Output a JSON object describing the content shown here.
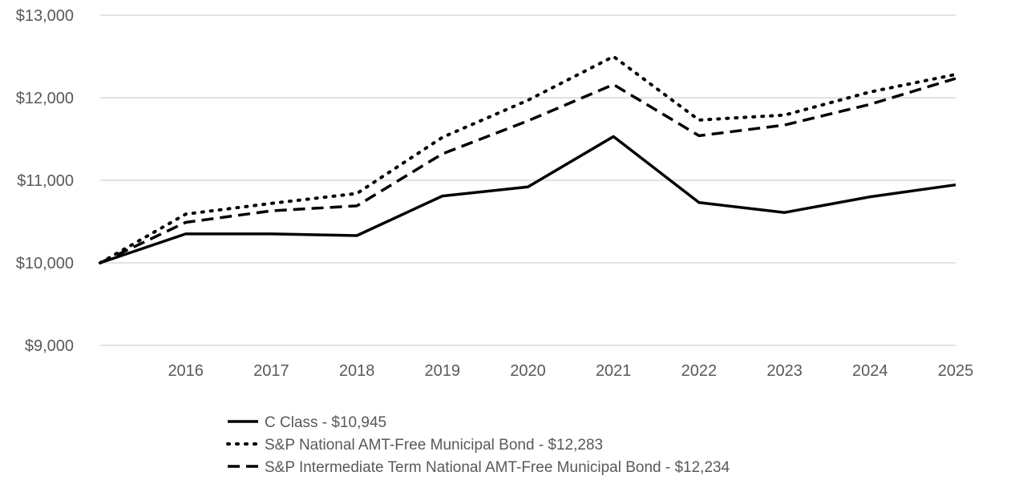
{
  "chart_data": {
    "type": "line",
    "title": "",
    "xlabel": "",
    "ylabel": "",
    "x": [
      "2015",
      "2016",
      "2017",
      "2018",
      "2019",
      "2020",
      "2021",
      "2022",
      "2023",
      "2024",
      "2025"
    ],
    "x_tick_labels": [
      "2016",
      "2017",
      "2018",
      "2019",
      "2020",
      "2021",
      "2022",
      "2023",
      "2024",
      "2025"
    ],
    "ylim": [
      9000,
      13000
    ],
    "y_ticks": [
      9000,
      10000,
      11000,
      12000,
      13000
    ],
    "y_tick_labels": [
      "$9,000",
      "$10,000",
      "$11,000",
      "$12,000",
      "$13,000"
    ],
    "grid": true,
    "legend_position": "bottom",
    "series": [
      {
        "name": "C Class - $10,945",
        "style": "solid",
        "color": "#000000",
        "values": [
          10000,
          10350,
          10350,
          10330,
          10810,
          10920,
          11530,
          10730,
          10610,
          10800,
          10945
        ]
      },
      {
        "name": "S&P National AMT-Free Municipal Bond - $12,283",
        "style": "dotted",
        "color": "#000000",
        "values": [
          10000,
          10590,
          10720,
          10840,
          11520,
          11970,
          12500,
          11730,
          11790,
          12070,
          12283
        ]
      },
      {
        "name": "S&P Intermediate Term National AMT-Free Municipal Bond - $12,234",
        "style": "dashed",
        "color": "#000000",
        "values": [
          10000,
          10490,
          10630,
          10690,
          11320,
          11720,
          12160,
          11540,
          11670,
          11920,
          12234
        ]
      }
    ]
  }
}
